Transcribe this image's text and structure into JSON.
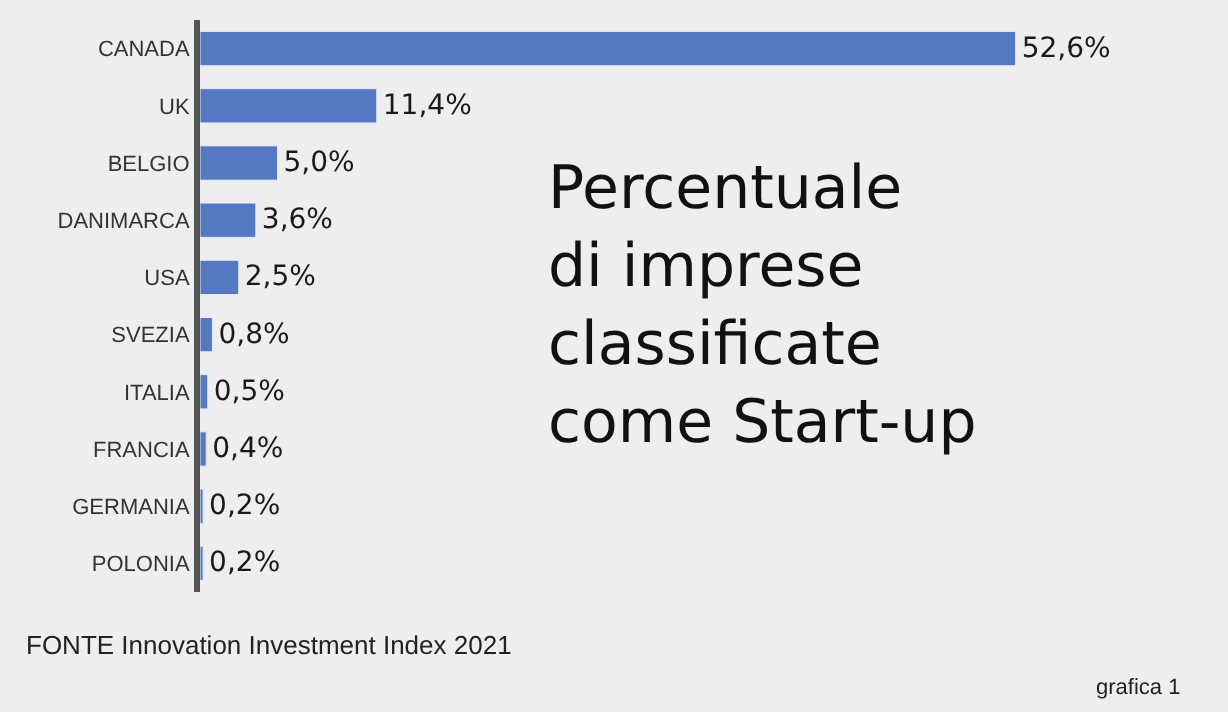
{
  "chart_data": {
    "type": "bar",
    "orientation": "horizontal",
    "title": "Percentuale\ndi imprese\nclassificate\ncome Start-up",
    "categories": [
      "CANADA",
      "UK",
      "BELGIO",
      "DANIMARCA",
      "USA",
      "SVEZIA",
      "ITALIA",
      "FRANCIA",
      "GERMANIA",
      "POLONIA"
    ],
    "values": [
      52.6,
      11.4,
      5.0,
      3.6,
      2.5,
      0.8,
      0.5,
      0.4,
      0.2,
      0.2
    ],
    "value_labels": [
      "52,6%",
      "11,4%",
      "5,0%",
      "3,6%",
      "2,5%",
      "0,8%",
      "0,5%",
      "0,4%",
      "0,2%",
      "0,2%"
    ],
    "color": "#5578c2",
    "annotations": [
      "FONTE Innovation Investment Index 2021",
      "grafica 1"
    ]
  }
}
